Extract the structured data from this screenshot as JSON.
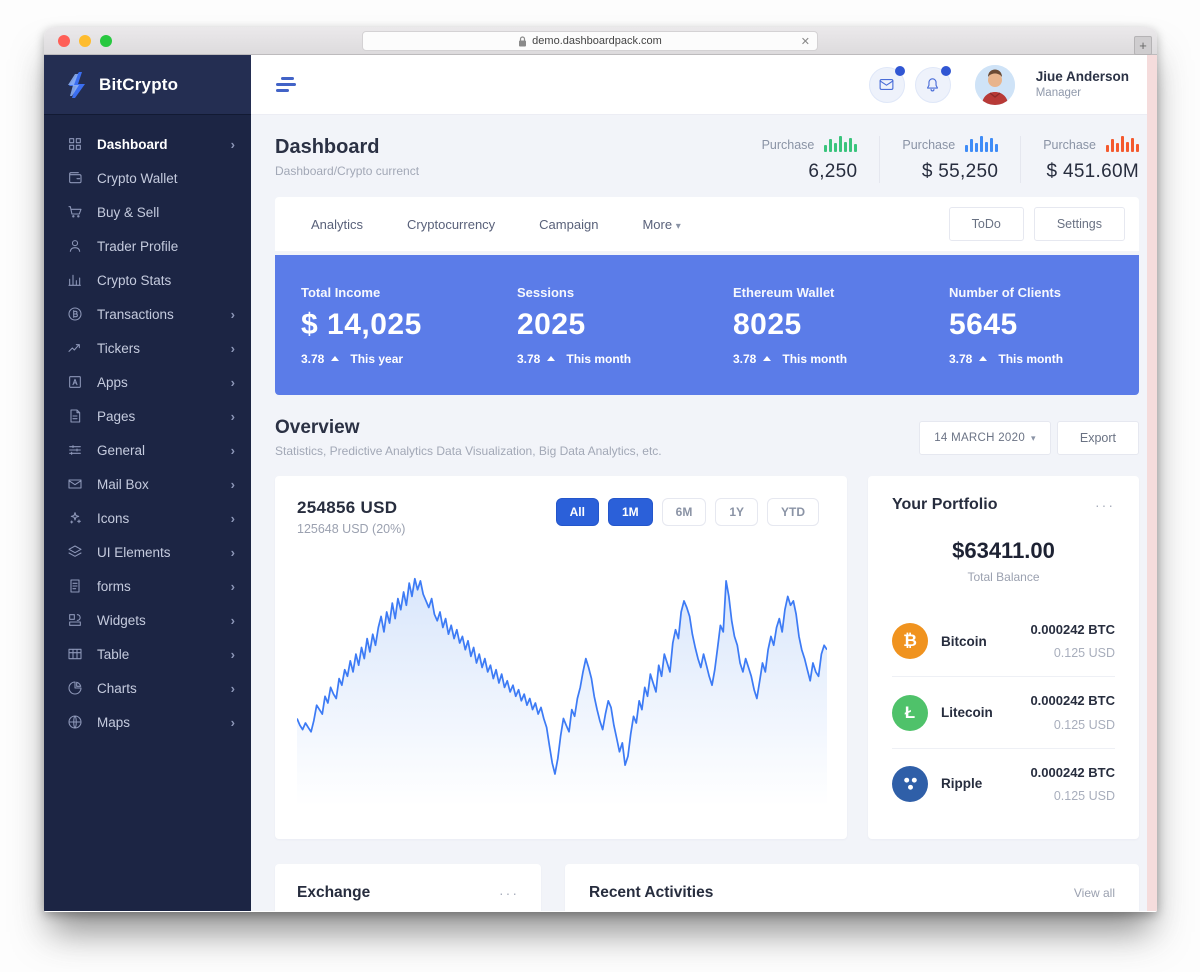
{
  "browser": {
    "url": "demo.dashboardpack.com",
    "clear_label": "✕",
    "new_tab_label": "+"
  },
  "sidebar": {
    "brand": "BitCrypto",
    "items": [
      {
        "label": "Dashboard",
        "icon": "grid-icon",
        "has_children": true,
        "active": true
      },
      {
        "label": "Crypto Wallet",
        "icon": "wallet-icon",
        "has_children": false,
        "active": false
      },
      {
        "label": "Buy & Sell",
        "icon": "cart-icon",
        "has_children": false,
        "active": false
      },
      {
        "label": "Trader Profile",
        "icon": "user-icon",
        "has_children": false,
        "active": false
      },
      {
        "label": "Crypto Stats",
        "icon": "stats-icon",
        "has_children": false,
        "active": false
      },
      {
        "label": "Transactions",
        "icon": "coin-icon",
        "has_children": true,
        "active": false
      },
      {
        "label": "Tickers",
        "icon": "trend-icon",
        "has_children": true,
        "active": false
      },
      {
        "label": "Apps",
        "icon": "appstore-icon",
        "has_children": true,
        "active": false
      },
      {
        "label": "Pages",
        "icon": "page-icon",
        "has_children": true,
        "active": false
      },
      {
        "label": "General",
        "icon": "sliders-icon",
        "has_children": true,
        "active": false
      },
      {
        "label": "Mail Box",
        "icon": "envelope-icon",
        "has_children": true,
        "active": false
      },
      {
        "label": "Icons",
        "icon": "sparkles-icon",
        "has_children": true,
        "active": false
      },
      {
        "label": "UI Elements",
        "icon": "layers-icon",
        "has_children": true,
        "active": false
      },
      {
        "label": "forms",
        "icon": "form-icon",
        "has_children": true,
        "active": false
      },
      {
        "label": "Widgets",
        "icon": "widget-icon",
        "has_children": true,
        "active": false
      },
      {
        "label": "Table",
        "icon": "table-icon",
        "has_children": true,
        "active": false
      },
      {
        "label": "Charts",
        "icon": "pie-icon",
        "has_children": true,
        "active": false
      },
      {
        "label": "Maps",
        "icon": "globe-icon",
        "has_children": true,
        "active": false
      }
    ]
  },
  "header": {
    "user_name": "Jiue Anderson",
    "user_role": "Manager",
    "mail_badge": true,
    "bell_badge": true
  },
  "page": {
    "title": "Dashboard",
    "breadcrumb": "Dashboard/Crypto currenct"
  },
  "purchase_stats": [
    {
      "label": "Purchase",
      "value": "6,250",
      "color": "#3ac47d",
      "bars": [
        45,
        80,
        55,
        100,
        65,
        90,
        50
      ]
    },
    {
      "label": "Purchase",
      "value": "$ 55,250",
      "color": "#3f8cf7",
      "bars": [
        45,
        80,
        55,
        100,
        65,
        90,
        50
      ]
    },
    {
      "label": "Purchase",
      "value": "$ 451.60M",
      "color": "#f4592e",
      "bars": [
        45,
        80,
        55,
        100,
        65,
        90,
        50
      ]
    }
  ],
  "tabs": {
    "items": [
      "Analytics",
      "Cryptocurrency",
      "Campaign"
    ],
    "more_label": "More",
    "more_caret": "▾",
    "actions": [
      "ToDo",
      "Settings"
    ]
  },
  "kpi_panel": {
    "bg_color": "#5b7ce8",
    "items": [
      {
        "label": "Total Income",
        "value": "$ 14,025",
        "delta": "3.78",
        "period": "This year"
      },
      {
        "label": "Sessions",
        "value": "2025",
        "delta": "3.78",
        "period": "This month"
      },
      {
        "label": "Ethereum Wallet",
        "value": "8025",
        "delta": "3.78",
        "period": "This month"
      },
      {
        "label": "Number of Clients",
        "value": "5645",
        "delta": "3.78",
        "period": "This month"
      }
    ]
  },
  "overview": {
    "title": "Overview",
    "subtitle": "Statistics, Predictive Analytics Data Visualization, Big Data Analytics, etc.",
    "date_filter": "14 MARCH 2020",
    "date_caret": "▾",
    "export_label": "Export"
  },
  "chart_card": {
    "value": "254856 USD",
    "sub": "125648 USD (20%)",
    "ranges": [
      {
        "label": "All",
        "active": true
      },
      {
        "label": "1M",
        "active": true
      },
      {
        "label": "6M",
        "active": false
      },
      {
        "label": "1Y",
        "active": false
      },
      {
        "label": "YTD",
        "active": false
      }
    ]
  },
  "chart_data": {
    "type": "area",
    "title": "254856 USD",
    "subtitle": "125648 USD (20%)",
    "xlabel": "",
    "ylabel": "",
    "grid": false,
    "legend": false,
    "axes_visible": false,
    "line_color": "#3d7bf5",
    "fill_color": "#d7e5fb",
    "note": "unlabeled high-frequency price sparkline; values are relative 0-100 estimates read from the plot",
    "series": [
      {
        "name": "Portfolio value (USD)",
        "values": [
          34,
          31,
          29,
          32,
          30,
          28,
          33,
          40,
          38,
          36,
          44,
          41,
          48,
          45,
          43,
          52,
          49,
          56,
          53,
          60,
          55,
          63,
          58,
          66,
          61,
          70,
          64,
          72,
          67,
          75,
          80,
          73,
          82,
          77,
          86,
          79,
          88,
          83,
          91,
          85,
          95,
          89,
          97,
          92,
          96,
          90,
          87,
          84,
          88,
          81,
          78,
          82,
          75,
          79,
          72,
          76,
          70,
          74,
          68,
          71,
          65,
          69,
          62,
          66,
          59,
          63,
          57,
          61,
          55,
          58,
          52,
          56,
          50,
          54,
          48,
          51,
          46,
          49,
          44,
          47,
          42,
          45,
          40,
          43,
          38,
          41,
          36,
          39,
          34,
          30,
          22,
          14,
          9,
          16,
          26,
          34,
          31,
          28,
          38,
          35,
          43,
          48,
          55,
          61,
          57,
          52,
          44,
          38,
          33,
          29,
          36,
          42,
          39,
          31,
          25,
          19,
          23,
          13,
          17,
          27,
          35,
          32,
          42,
          38,
          48,
          44,
          54,
          50,
          46,
          58,
          53,
          63,
          59,
          55,
          68,
          74,
          70,
          82,
          87,
          84,
          80,
          72,
          66,
          61,
          57,
          63,
          58,
          53,
          49,
          56,
          66,
          76,
          73,
          96,
          89,
          78,
          71,
          67,
          59,
          55,
          61,
          57,
          53,
          47,
          43,
          51,
          59,
          55,
          65,
          71,
          67,
          75,
          79,
          73,
          83,
          89,
          85,
          87,
          81,
          71,
          65,
          61,
          56,
          51,
          59,
          55,
          53,
          63,
          67,
          65
        ]
      }
    ]
  },
  "portfolio": {
    "title": "Your Portfolio",
    "menu": "···",
    "balance": "$63411.00",
    "balance_label": "Total Balance",
    "coins": [
      {
        "name": "Bitcoin",
        "icon": "bitcoin-icon",
        "glyph": "₿",
        "color": "#f0931f",
        "amount": "0.000242 BTC",
        "usd": "0.125 USD"
      },
      {
        "name": "Litecoin",
        "icon": "litecoin-icon",
        "glyph": "Ł",
        "color": "#4fc26a",
        "amount": "0.000242 BTC",
        "usd": "0.125 USD"
      },
      {
        "name": "Ripple",
        "icon": "ripple-icon",
        "glyph": "",
        "color": "#2f5fa8",
        "amount": "0.000242 BTC",
        "usd": "0.125 USD"
      }
    ]
  },
  "bottom": {
    "exchange_title": "Exchange",
    "exchange_menu": "···",
    "activities_title": "Recent Activities",
    "view_all": "View all"
  }
}
